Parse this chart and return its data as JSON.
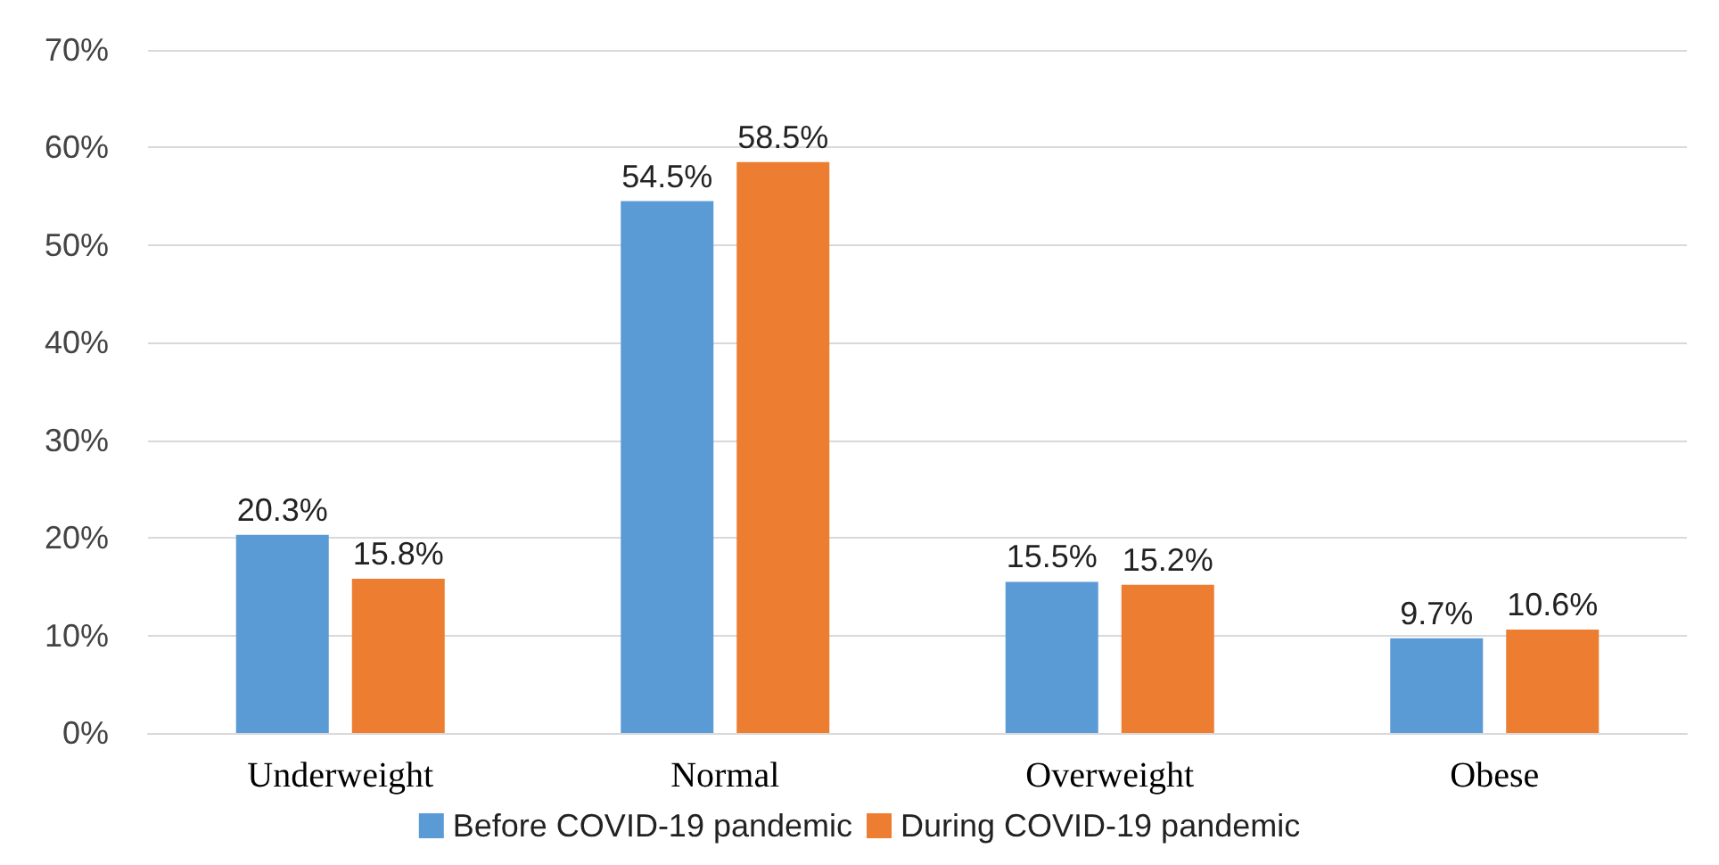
{
  "chart_data": {
    "type": "bar",
    "categories": [
      "Underweight",
      "Normal",
      "Overweight",
      "Obese"
    ],
    "series": [
      {
        "name": "Before COVID-19 pandemic",
        "color": "#5b9bd5",
        "values": [
          20.3,
          54.5,
          15.5,
          9.7
        ],
        "value_labels": [
          "20.3%",
          "54.5%",
          "15.5%",
          "9.7%"
        ]
      },
      {
        "name": "During COVID-19 pandemic",
        "color": "#ed7d31",
        "values": [
          15.8,
          58.5,
          15.2,
          10.6
        ],
        "value_labels": [
          "15.8%",
          "58.5%",
          "15.2%",
          "10.6%"
        ]
      }
    ],
    "ylim": [
      0,
      70
    ],
    "yticks": [
      {
        "value": 0,
        "label": "0%"
      },
      {
        "value": 10,
        "label": "10%"
      },
      {
        "value": 20,
        "label": "20%"
      },
      {
        "value": 30,
        "label": "30%"
      },
      {
        "value": 40,
        "label": "40%"
      },
      {
        "value": 50,
        "label": "50%"
      },
      {
        "value": 60,
        "label": "60%"
      },
      {
        "value": 70,
        "label": "70%"
      }
    ],
    "grid": "y",
    "legend": "bottom"
  }
}
